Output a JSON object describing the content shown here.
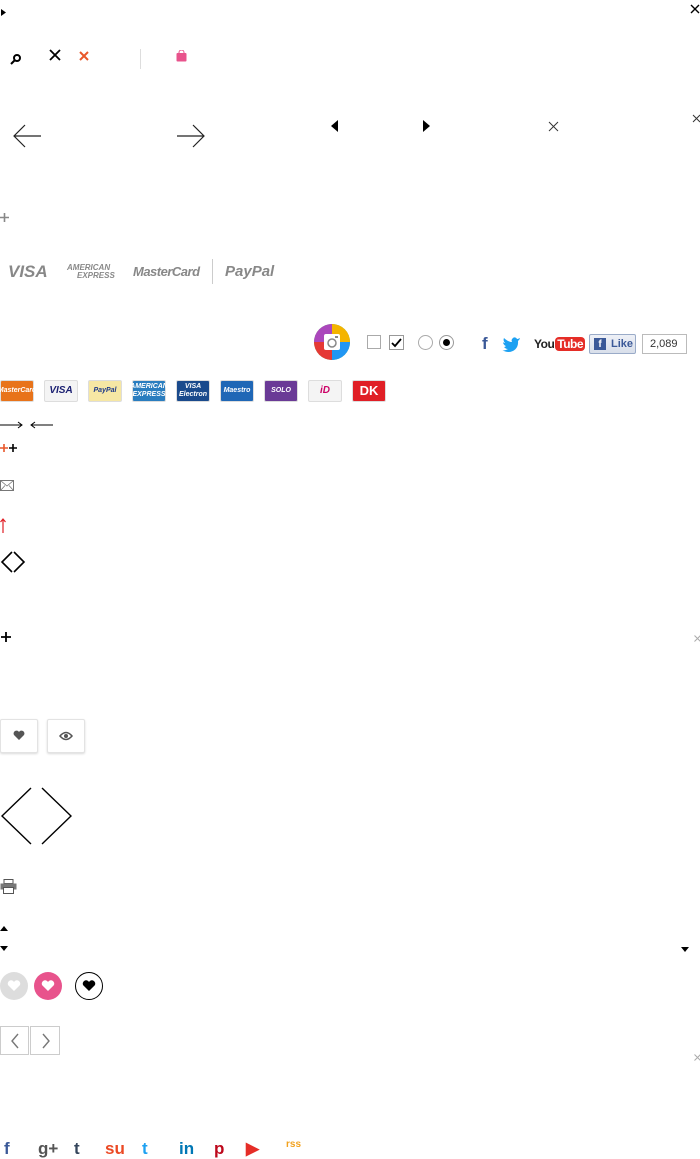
{
  "icons": {
    "search": "search-icon",
    "close": "close-icon",
    "bag": "shopping-bag-icon",
    "arrow_left": "arrow-left-icon",
    "arrow_right": "arrow-right-icon",
    "triangle_left": "triangle-left-icon",
    "triangle_right": "triangle-right-icon",
    "plus": "plus-icon",
    "mail": "mail-icon",
    "arrow_up": "arrow-up-icon",
    "heart": "heart-icon",
    "eye": "eye-icon",
    "print": "print-icon"
  },
  "brands_gray": {
    "visa": "VISA",
    "amex_top": "AMERICAN",
    "amex_bottom": "EXPRESS",
    "mastercard": "MasterCard",
    "paypal": "PayPal"
  },
  "social_row": {
    "facebook": "f",
    "youtube_you": "You",
    "youtube_tube": "Tube",
    "like_label": "Like",
    "like_count": "2,089"
  },
  "payment_cards": [
    {
      "name": "mastercard",
      "label": "MasterCard",
      "bg": "#e8731a"
    },
    {
      "name": "visa",
      "label": "VISA",
      "bg": "#f4f4f4"
    },
    {
      "name": "paypal",
      "label": "PayPal",
      "bg": "#f6e7a4"
    },
    {
      "name": "amex",
      "label": "AMERICAN EXPRESS",
      "bg": "#2a7dbf"
    },
    {
      "name": "visa-electron",
      "label": "VISA Electron",
      "bg": "#1a4a8c"
    },
    {
      "name": "maestro",
      "label": "Maestro",
      "bg": "#1f67b6"
    },
    {
      "name": "solo",
      "label": "SOLO",
      "bg": "#6a3a96"
    },
    {
      "name": "ideal",
      "label": "iD",
      "bg": "#f4f4f4"
    },
    {
      "name": "dankort",
      "label": "DK",
      "bg": "#e01f26"
    }
  ],
  "share_icons": [
    {
      "name": "facebook",
      "glyph": "f",
      "color": "#3b5998"
    },
    {
      "name": "google-plus",
      "glyph": "g+",
      "color": "#555"
    },
    {
      "name": "tumblr",
      "glyph": "t",
      "color": "#35465c"
    },
    {
      "name": "stumbleupon",
      "glyph": "su",
      "color": "#eb4924"
    },
    {
      "name": "twitter",
      "glyph": "t",
      "color": "#1da1f2"
    },
    {
      "name": "linkedin",
      "glyph": "in",
      "color": "#0077b5"
    },
    {
      "name": "pinterest",
      "glyph": "p",
      "color": "#bd081c"
    },
    {
      "name": "youtube",
      "glyph": "▶",
      "color": "#e52d27"
    },
    {
      "name": "rss",
      "glyph": "rss",
      "color": "#f2a21f"
    }
  ],
  "colors": {
    "pink": "#e8538c",
    "orange": "#e8572a",
    "gray_icon": "#888888"
  }
}
